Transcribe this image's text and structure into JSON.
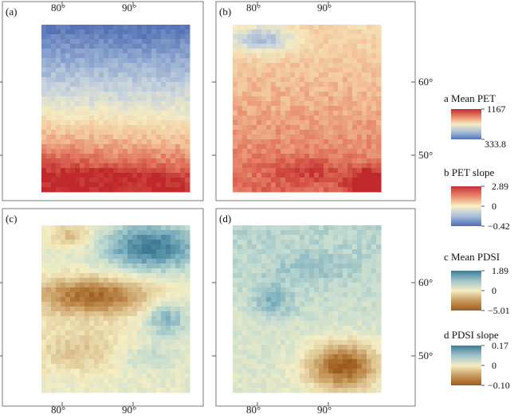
{
  "panels": [
    {
      "id": "a",
      "label": "(a)",
      "variable": "mean_pet"
    },
    {
      "id": "b",
      "label": "(b)",
      "variable": "pet_slope"
    },
    {
      "id": "c",
      "label": "(c)",
      "variable": "mean_pdsi"
    },
    {
      "id": "d",
      "label": "(d)",
      "variable": "pdsi_slope"
    }
  ],
  "axes": {
    "lon_ticks": [
      "80°",
      "90°"
    ],
    "lat_ticks": [
      "60°",
      "50°"
    ]
  },
  "legends": [
    {
      "id": "a",
      "title": "a Mean PET",
      "max": "1167",
      "min": "333.8",
      "colors": [
        "#c0282b",
        "#e8896a",
        "#f5ecc2",
        "#a9c0da",
        "#5673b5"
      ]
    },
    {
      "id": "b",
      "title": "b PET slope",
      "max": "2.89",
      "mid": "0",
      "min": "−0.42",
      "colors": [
        "#c8323a",
        "#e98a6b",
        "#f7f2c6",
        "#a7bfdd",
        "#4f6cb5"
      ]
    },
    {
      "id": "c",
      "title": "c Mean PDSI",
      "max": "1.89",
      "mid": "0",
      "min": "−5.01",
      "colors": [
        "#3e7c95",
        "#9ec3c8",
        "#f4eec4",
        "#c89b5e",
        "#9b5b1d"
      ]
    },
    {
      "id": "d",
      "title": "d PDSI slope",
      "max": "0.17",
      "mid": "0",
      "min": "−0.10",
      "colors": [
        "#3e7c95",
        "#9ec3c8",
        "#f4eec4",
        "#c89b5e",
        "#9b5b1d"
      ]
    }
  ],
  "palettes": {
    "pet": [
      "#c0282b",
      "#e2765e",
      "#f3c49a",
      "#f5ecc2",
      "#c6d3dc",
      "#8ea6cf",
      "#5673b5"
    ],
    "pdsi": [
      "#3e7c95",
      "#7db0bf",
      "#c5dcd0",
      "#f4eec4",
      "#dcc28f",
      "#c08e50",
      "#9b5b1d"
    ]
  }
}
